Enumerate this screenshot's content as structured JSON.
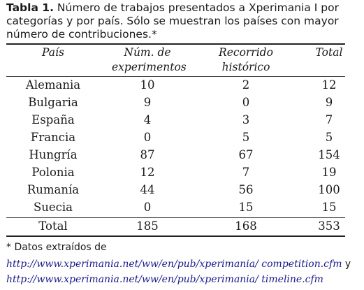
{
  "caption": {
    "label": "Tabla 1.",
    "text": "Número de trabajos presentados a Xperimania I por categorías y por país. Sólo se muestran los países con mayor número de contribuciones.*"
  },
  "table": {
    "headers": {
      "pais": "País",
      "experimentos_line1": "Núm. de",
      "experimentos_line2": "experimentos",
      "recorrido_line1": "Recorrido",
      "recorrido_line2": "histórico",
      "total": "Total"
    },
    "rows": [
      {
        "pais": "Alemania",
        "experimentos": "10",
        "recorrido": "2",
        "total": "12"
      },
      {
        "pais": "Bulgaria",
        "experimentos": "9",
        "recorrido": "0",
        "total": "9"
      },
      {
        "pais": "España",
        "experimentos": "4",
        "recorrido": "3",
        "total": "7"
      },
      {
        "pais": "Francia",
        "experimentos": "0",
        "recorrido": "5",
        "total": "5"
      },
      {
        "pais": "Hungría",
        "experimentos": "87",
        "recorrido": "67",
        "total": "154"
      },
      {
        "pais": "Polonia",
        "experimentos": "12",
        "recorrido": "7",
        "total": "19"
      },
      {
        "pais": "Rumanía",
        "experimentos": "44",
        "recorrido": "56",
        "total": "100"
      },
      {
        "pais": "Suecia",
        "experimentos": "0",
        "recorrido": "15",
        "total": "15"
      }
    ],
    "total_row": {
      "pais": "Total",
      "experimentos": "185",
      "recorrido": "168",
      "total": "353"
    }
  },
  "footnote": {
    "prefix": "* Datos extraídos de",
    "link1": "http://www.xperimania.net/ww/en/pub/xperimania/ competition.cfm",
    "joiner": " y",
    "link2": "http://www.xperimania.net/ww/en/pub/xperimania/ timeline.cfm"
  }
}
